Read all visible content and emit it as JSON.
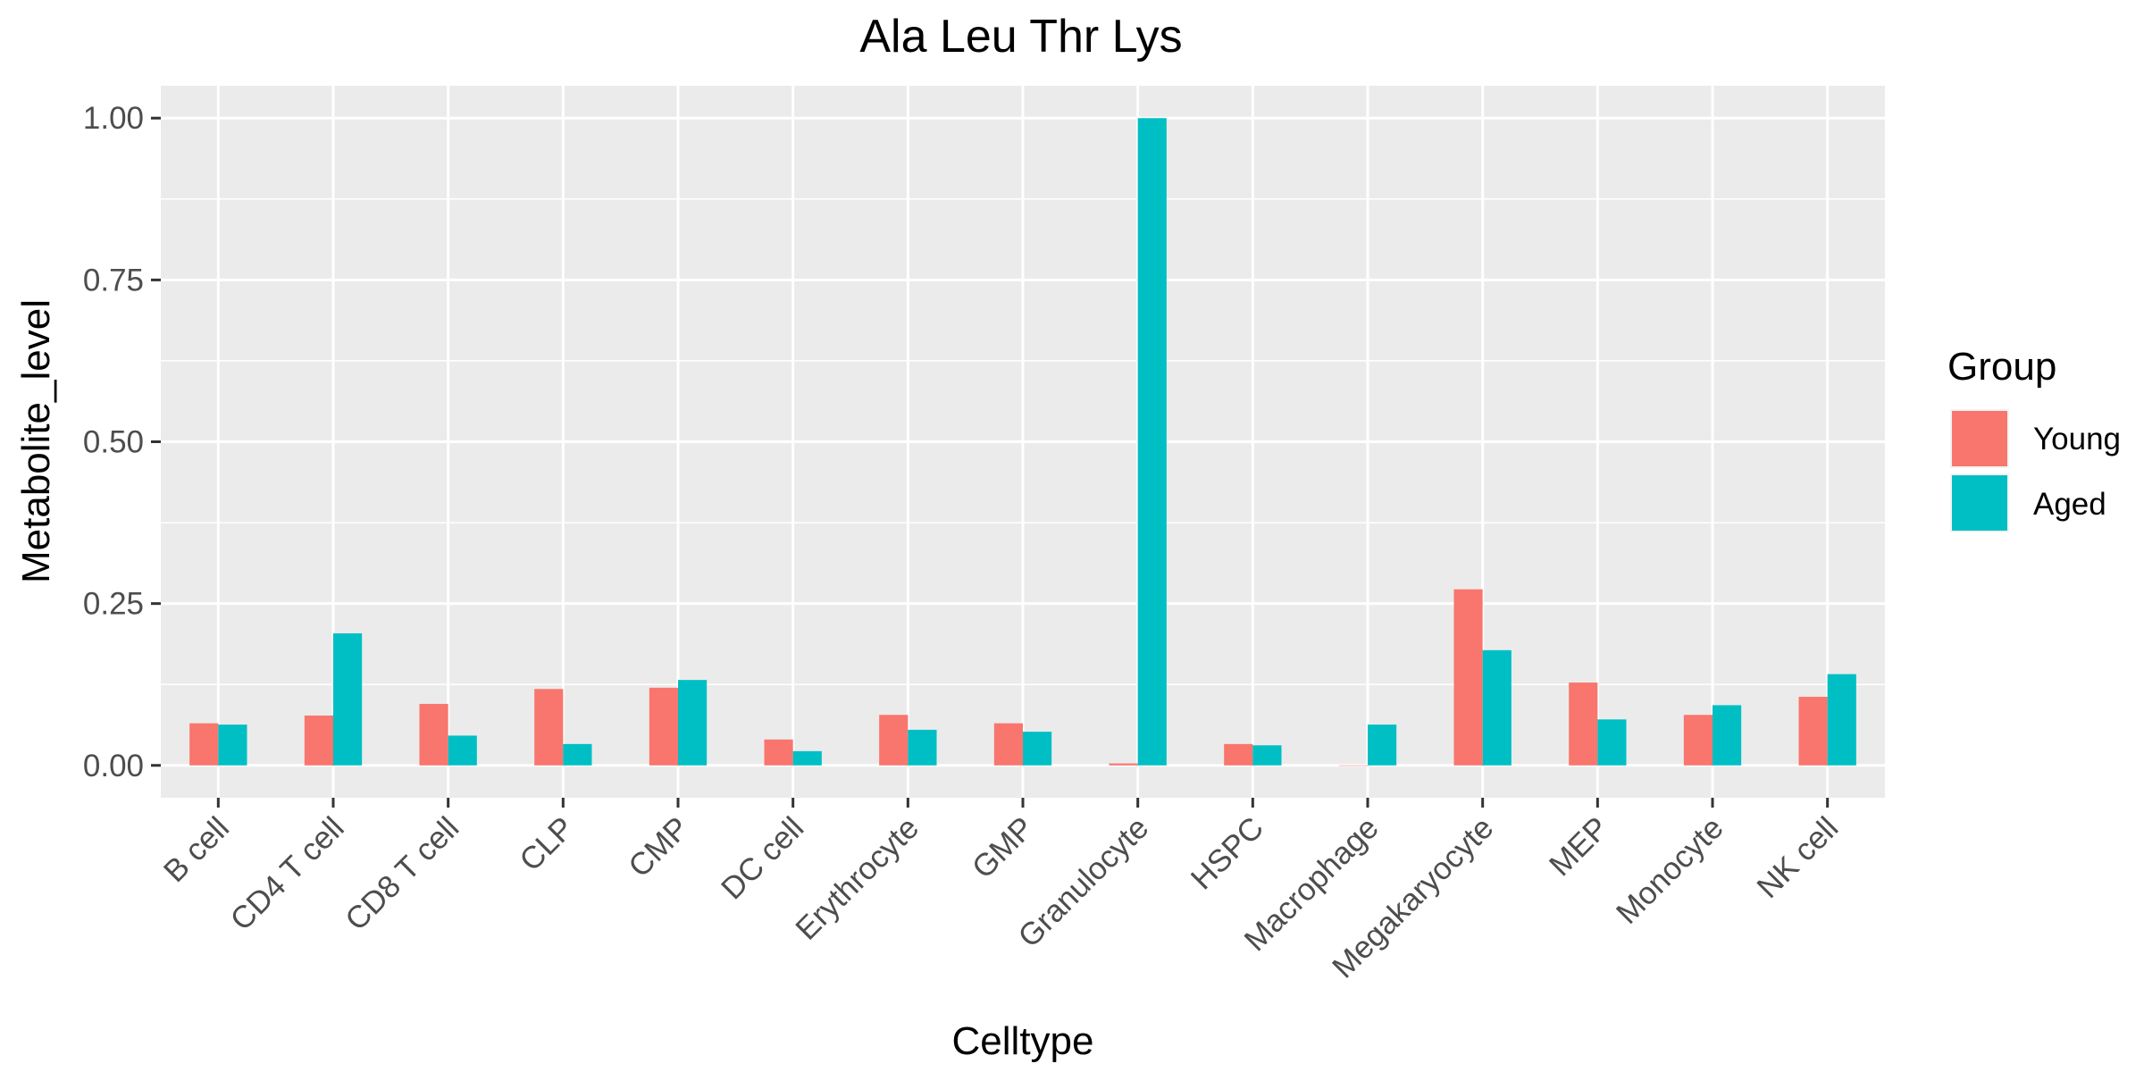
{
  "chart_data": {
    "type": "bar",
    "title": "Ala Leu Thr Lys",
    "xlabel": "Celltype",
    "ylabel": "Metabolite_level",
    "ylim": [
      -0.05,
      1.05
    ],
    "yticks": [
      0.0,
      0.25,
      0.5,
      0.75,
      1.0
    ],
    "ytick_labels": [
      "0.00",
      "0.25",
      "0.50",
      "0.75",
      "1.00"
    ],
    "grid": true,
    "legend": {
      "title": "Group",
      "position": "right"
    },
    "categories": [
      "B cell",
      "CD4 T cell",
      "CD8 T cell",
      "CLP",
      "CMP",
      "DC cell",
      "Erythrocyte",
      "GMP",
      "Granulocyte",
      "HSPC",
      "Macrophage",
      "Megakaryocyte",
      "MEP",
      "Monocyte",
      "NK cell"
    ],
    "series": [
      {
        "name": "Young",
        "color": "#F8766D",
        "values": [
          0.065,
          0.077,
          0.095,
          0.118,
          0.12,
          0.04,
          0.078,
          0.065,
          0.003,
          0.033,
          0.0,
          0.272,
          0.128,
          0.078,
          0.106
        ]
      },
      {
        "name": "Aged",
        "color": "#00BFC4",
        "values": [
          0.063,
          0.204,
          0.046,
          0.033,
          0.132,
          0.022,
          0.055,
          0.052,
          1.0,
          0.031,
          0.063,
          0.178,
          0.071,
          0.093,
          0.141
        ]
      }
    ]
  }
}
